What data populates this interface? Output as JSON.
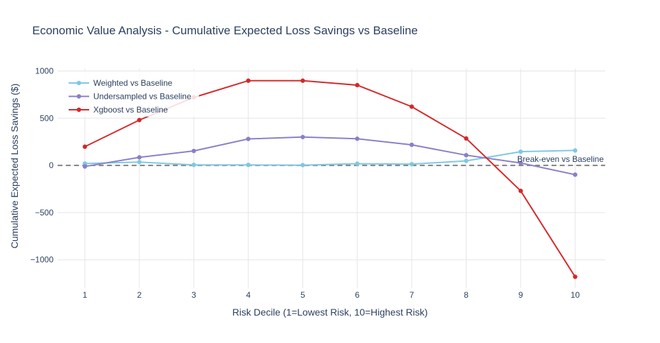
{
  "chart_data": {
    "type": "line",
    "title": "Economic Value Analysis - Cumulative Expected Loss Savings vs Baseline",
    "xlabel": "Risk Decile (1=Lowest Risk, 10=Highest Risk)",
    "ylabel": "Cumulative Expected Loss Savings ($)",
    "x": [
      1,
      2,
      3,
      4,
      5,
      6,
      7,
      8,
      9,
      10
    ],
    "xlim": [
      0.5,
      10.55
    ],
    "ylim": [
      -1300,
      1025
    ],
    "yticks": [
      1000,
      500,
      0,
      -500,
      -1000
    ],
    "ytick_labels": [
      "1000",
      "500",
      "0",
      "−500",
      "−1000"
    ],
    "grid": true,
    "legend_position": "top-left",
    "series": [
      {
        "name": "Weighted vs Baseline",
        "color": "#7ec8e3",
        "values": [
          20,
          35,
          5,
          5,
          3,
          18,
          13,
          48,
          145,
          158
        ]
      },
      {
        "name": "Undersampled vs Baseline",
        "color": "#8a7fc8",
        "values": [
          -12,
          85,
          153,
          280,
          300,
          282,
          218,
          108,
          25,
          -98
        ]
      },
      {
        "name": "Xgboost vs Baseline",
        "color": "#d62728",
        "values": [
          198,
          480,
          720,
          897,
          897,
          850,
          622,
          285,
          -270,
          -1180
        ]
      }
    ],
    "reference_line": {
      "y": 0,
      "label": "Break-even vs Baseline",
      "color": "#808080"
    }
  }
}
